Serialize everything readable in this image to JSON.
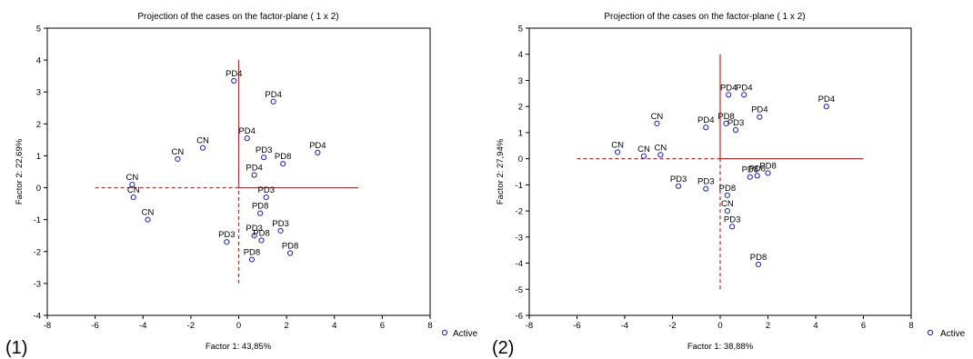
{
  "chart_data": [
    {
      "type": "scatter",
      "panel_label": "(1)",
      "title": "Projection of the cases on the factor-plane ( 1 x  2)",
      "xlabel": "Factor 1: 43,85%",
      "ylabel": "Factor 2: 22,69%",
      "xlim": [
        -8,
        8
      ],
      "ylim": [
        -4,
        5
      ],
      "xticks": [
        "-8",
        "-6",
        "-4",
        "-2",
        "0",
        "2",
        "4",
        "6",
        "8"
      ],
      "yticks": [
        "-4",
        "-3",
        "-2",
        "-1",
        "0",
        "1",
        "2",
        "3",
        "4",
        "5"
      ],
      "grid": false,
      "legend": {
        "label": "Active",
        "position": "bottom-right outside"
      },
      "reference_lines": {
        "horizontal": {
          "y": 0,
          "x_from": -6,
          "x_to": 5
        },
        "vertical": {
          "x": 0,
          "y_from": -3,
          "y_to": 4
        }
      },
      "points": [
        {
          "x": -0.2,
          "y": 3.35,
          "label": "PD4"
        },
        {
          "x": 1.45,
          "y": 2.7,
          "label": "PD4"
        },
        {
          "x": 0.35,
          "y": 1.55,
          "label": "PD4"
        },
        {
          "x": -1.5,
          "y": 1.25,
          "label": "CN"
        },
        {
          "x": -2.55,
          "y": 0.9,
          "label": "CN"
        },
        {
          "x": 1.05,
          "y": 0.95,
          "label": "PD3"
        },
        {
          "x": 1.85,
          "y": 0.75,
          "label": "PD8"
        },
        {
          "x": 3.3,
          "y": 1.1,
          "label": "PD4"
        },
        {
          "x": 0.65,
          "y": 0.4,
          "label": "PD4"
        },
        {
          "x": -4.45,
          "y": 0.1,
          "label": "CN"
        },
        {
          "x": -4.4,
          "y": -0.3,
          "label": "CN"
        },
        {
          "x": -3.8,
          "y": -1.0,
          "label": "CN"
        },
        {
          "x": 1.15,
          "y": -0.3,
          "label": "PD3"
        },
        {
          "x": 0.9,
          "y": -0.8,
          "label": "PD8"
        },
        {
          "x": -0.5,
          "y": -1.7,
          "label": "PD3"
        },
        {
          "x": 0.65,
          "y": -1.5,
          "label": "PD3"
        },
        {
          "x": 0.95,
          "y": -1.65,
          "label": "PD8"
        },
        {
          "x": 1.75,
          "y": -1.35,
          "label": "PD3"
        },
        {
          "x": 0.55,
          "y": -2.25,
          "label": "PD8"
        },
        {
          "x": 2.15,
          "y": -2.05,
          "label": "PD8"
        }
      ]
    },
    {
      "type": "scatter",
      "panel_label": "(2)",
      "title": "Projection of the cases on the factor-plane ( 1 x  2)",
      "xlabel": "Factor 1: 38,88%",
      "ylabel": "Factor 2: 27,94%",
      "xlim": [
        -8,
        8
      ],
      "ylim": [
        -6,
        5
      ],
      "xticks": [
        "-8",
        "-6",
        "-4",
        "-2",
        "0",
        "2",
        "4",
        "6",
        "8"
      ],
      "yticks": [
        "-6",
        "-5",
        "-4",
        "-3",
        "-2",
        "-1",
        "0",
        "1",
        "2",
        "3",
        "4",
        "5"
      ],
      "grid": false,
      "legend": {
        "label": "Active",
        "position": "bottom-right outside"
      },
      "reference_lines": {
        "horizontal": {
          "y": 0,
          "x_from": -6,
          "x_to": 6
        },
        "vertical": {
          "x": 0,
          "y_from": -5,
          "y_to": 4
        }
      },
      "points": [
        {
          "x": 0.35,
          "y": 2.45,
          "label": "PD4"
        },
        {
          "x": 1.0,
          "y": 2.45,
          "label": "PD4"
        },
        {
          "x": 4.45,
          "y": 2.0,
          "label": "PD4"
        },
        {
          "x": 1.65,
          "y": 1.6,
          "label": "PD4"
        },
        {
          "x": -2.65,
          "y": 1.35,
          "label": "CN"
        },
        {
          "x": -0.6,
          "y": 1.2,
          "label": "PD4"
        },
        {
          "x": 0.25,
          "y": 1.35,
          "label": "PD8"
        },
        {
          "x": 0.65,
          "y": 1.1,
          "label": "PD3"
        },
        {
          "x": -4.3,
          "y": 0.25,
          "label": "CN"
        },
        {
          "x": -3.2,
          "y": 0.1,
          "label": "CN"
        },
        {
          "x": -2.5,
          "y": 0.15,
          "label": "CN"
        },
        {
          "x": 1.25,
          "y": -0.7,
          "label": "PD8"
        },
        {
          "x": 1.55,
          "y": -0.65,
          "label": "PD8"
        },
        {
          "x": 2.0,
          "y": -0.55,
          "label": "PD8"
        },
        {
          "x": -1.75,
          "y": -1.05,
          "label": "PD3"
        },
        {
          "x": -0.6,
          "y": -1.15,
          "label": "PD3"
        },
        {
          "x": 0.3,
          "y": -1.4,
          "label": "PD8"
        },
        {
          "x": 0.3,
          "y": -2.0,
          "label": "CN"
        },
        {
          "x": 0.5,
          "y": -2.6,
          "label": "PD3"
        },
        {
          "x": 1.6,
          "y": -4.05,
          "label": "PD8"
        }
      ]
    }
  ],
  "colors": {
    "point": "#1a1acc",
    "reference_line": "#d42020",
    "axis": "#000000"
  }
}
